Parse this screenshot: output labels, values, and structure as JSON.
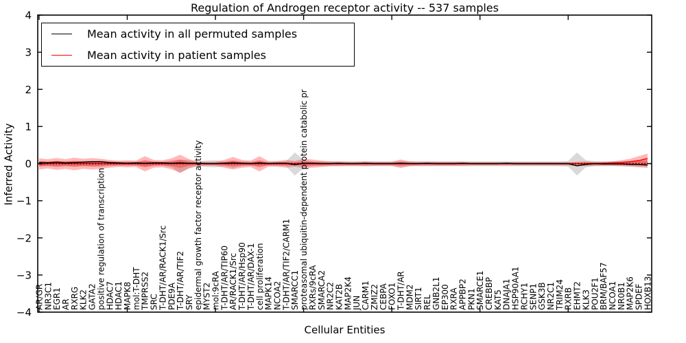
{
  "title": "Regulation of Androgen receptor activity -- 537 samples",
  "axes": {
    "xlabel": "Cellular Entities",
    "ylabel": "Inferred Activity"
  },
  "legend": {
    "items": [
      {
        "label": "Mean activity in all permuted samples",
        "color": "#000000"
      },
      {
        "label": "Mean activity in patient samples",
        "color": "#ff0000"
      }
    ]
  },
  "chart_data": {
    "type": "line",
    "title": "Regulation of Androgen receptor activity -- 537 samples",
    "xlabel": "Cellular Entities",
    "ylabel": "Inferred Activity",
    "ylim": [
      -4,
      4
    ],
    "yticks": [
      -4,
      -3,
      -2,
      -1,
      0,
      1,
      2,
      3,
      4
    ],
    "grid": false,
    "legend_position": "upper left",
    "zero_line": {
      "value": 0,
      "style": "dotted",
      "color": "#000000"
    },
    "categories": [
      "AR/GR",
      "NR3C1",
      "EGR1",
      "AR",
      "RXRG",
      "KLK2",
      "GATA2",
      "positive regulation of transcription",
      "HDAC7",
      "HDAC1",
      "MAPK8",
      "mol:T-DHT",
      "TMPRSS2",
      "SRC",
      "T-DHT/AR/RACK1/Src",
      "PDE9A",
      "T-DHT/AR/TIF2",
      "SRY",
      "epidermal growth factor receptor activity",
      "MYST2",
      "mol:9cRA",
      "T-DHT/AR/TIP60",
      "AR/RACK1/Src",
      "T-DHT/AR/Hsp90",
      "T-DHT/AR/DAX-1",
      "cell proliferation",
      "MAPK14",
      "NCOA2",
      "T-DHT/AR/TIF2/CARM1",
      "SMARCC1",
      "proteasomal ubiquitin-dependent protein catabolic pr",
      "RXRs/9cRA",
      "SMARCA2",
      "NR2C2",
      "KAT2B",
      "MAP2K4",
      "JUN",
      "CARM1",
      "ZMIZ2",
      "CEBPA",
      "FOXO1",
      "T-DHT/AR",
      "MDM2",
      "SIRT1",
      "REL",
      "GNB2L1",
      "EP300",
      "RXRA",
      "APPBP2",
      "PKN1",
      "SMARCE1",
      "CREBBP",
      "KAT5",
      "DNAJA1",
      "HSP90AA1",
      "RCHY1",
      "SENP1",
      "GSK3B",
      "NR2C1",
      "TRIM24",
      "RXRB",
      "EHMT2",
      "KLK3",
      "POU2F1",
      "BRM/BAF57",
      "NCOA1",
      "NR0B1",
      "MAP2K6",
      "SPDEF",
      "HOXB13"
    ],
    "series": [
      {
        "name": "Mean activity in all permuted samples",
        "color": "#000000",
        "values": [
          0.03,
          0.02,
          0.04,
          0.02,
          0.03,
          0.04,
          0.05,
          0.05,
          0.03,
          0.02,
          0.01,
          0.02,
          0.01,
          0.02,
          0.02,
          0.01,
          0.02,
          0.01,
          0.01,
          0.0,
          0.0,
          0.01,
          0.02,
          0.01,
          0.0,
          0.02,
          0.0,
          0.01,
          0.01,
          -0.03,
          0.01,
          0.01,
          0.0,
          0.0,
          0.01,
          0.0,
          0.0,
          0.01,
          0.0,
          0.0,
          0.0,
          0.01,
          0.0,
          0.0,
          0.01,
          0.0,
          0.0,
          0.0,
          0.01,
          0.0,
          0.0,
          0.0,
          0.0,
          0.01,
          0.0,
          0.0,
          0.0,
          0.0,
          0.0,
          0.0,
          0.0,
          -0.06,
          -0.02,
          0.0,
          -0.01,
          -0.01,
          -0.01,
          -0.02,
          -0.02,
          -0.04
        ]
      },
      {
        "name": "Mean activity in patient samples",
        "color": "#ff0000",
        "values": [
          -0.02,
          0.0,
          0.0,
          0.0,
          0.0,
          0.0,
          0.0,
          0.0,
          0.0,
          0.0,
          0.0,
          0.0,
          0.0,
          0.0,
          0.0,
          0.0,
          0.0,
          0.0,
          0.0,
          0.0,
          0.0,
          0.0,
          0.0,
          0.0,
          0.0,
          0.0,
          0.0,
          0.0,
          0.0,
          0.0,
          0.0,
          0.0,
          0.0,
          0.0,
          0.0,
          0.0,
          0.0,
          0.0,
          0.0,
          0.0,
          0.0,
          0.0,
          0.0,
          0.0,
          0.0,
          0.0,
          0.0,
          0.0,
          0.0,
          0.0,
          0.0,
          0.0,
          0.0,
          0.0,
          0.0,
          0.0,
          0.0,
          0.0,
          0.0,
          0.0,
          0.0,
          0.0,
          0.0,
          0.0,
          0.01,
          0.02,
          0.03,
          0.05,
          0.08,
          0.14
        ]
      }
    ],
    "bands": [
      {
        "name": "permuted-spread",
        "color": "#808080",
        "opacity": 0.3,
        "top": [
          0.06,
          0.06,
          0.07,
          0.06,
          0.07,
          0.06,
          0.07,
          0.08,
          0.06,
          0.05,
          0.06,
          0.05,
          0.08,
          0.06,
          0.05,
          0.08,
          0.1,
          0.1,
          0.05,
          0.08,
          0.09,
          0.06,
          0.08,
          0.06,
          0.05,
          0.06,
          0.05,
          0.06,
          0.06,
          0.3,
          0.1,
          0.06,
          0.06,
          0.06,
          0.06,
          0.06,
          0.06,
          0.06,
          0.06,
          0.06,
          0.06,
          0.07,
          0.06,
          0.06,
          0.06,
          0.06,
          0.06,
          0.06,
          0.06,
          0.06,
          0.06,
          0.06,
          0.06,
          0.06,
          0.06,
          0.06,
          0.06,
          0.06,
          0.06,
          0.06,
          0.07,
          0.3,
          0.09,
          0.06,
          0.06,
          0.06,
          0.06,
          0.06,
          0.07,
          0.07
        ],
        "bottom": [
          -0.08,
          -0.07,
          -0.09,
          -0.07,
          -0.08,
          -0.07,
          -0.08,
          -0.09,
          -0.07,
          -0.06,
          -0.06,
          -0.06,
          -0.09,
          -0.07,
          -0.06,
          -0.1,
          -0.25,
          -0.12,
          -0.06,
          -0.09,
          -0.1,
          -0.07,
          -0.12,
          -0.07,
          -0.06,
          -0.07,
          -0.06,
          -0.07,
          -0.07,
          -0.32,
          -0.12,
          -0.07,
          -0.07,
          -0.07,
          -0.07,
          -0.07,
          -0.07,
          -0.07,
          -0.07,
          -0.07,
          -0.07,
          -0.08,
          -0.07,
          -0.07,
          -0.07,
          -0.07,
          -0.07,
          -0.07,
          -0.07,
          -0.07,
          -0.07,
          -0.07,
          -0.07,
          -0.07,
          -0.07,
          -0.07,
          -0.07,
          -0.07,
          -0.07,
          -0.07,
          -0.08,
          -0.32,
          -0.1,
          -0.07,
          -0.07,
          -0.07,
          -0.07,
          -0.07,
          -0.08,
          -0.08
        ]
      },
      {
        "name": "patient-spread",
        "color": "#ff0000",
        "opacity": 0.28,
        "inner_scale": 0.45,
        "inner_opacity": 0.32,
        "top": [
          0.14,
          0.12,
          0.15,
          0.12,
          0.16,
          0.13,
          0.15,
          0.13,
          0.1,
          0.08,
          0.09,
          0.08,
          0.2,
          0.1,
          0.09,
          0.14,
          0.24,
          0.12,
          0.06,
          0.05,
          0.05,
          0.1,
          0.18,
          0.1,
          0.08,
          0.2,
          0.07,
          0.07,
          0.1,
          0.07,
          0.13,
          0.11,
          0.08,
          0.06,
          0.06,
          0.05,
          0.05,
          0.06,
          0.05,
          0.05,
          0.05,
          0.11,
          0.06,
          0.05,
          0.05,
          0.05,
          0.05,
          0.05,
          0.05,
          0.04,
          0.04,
          0.04,
          0.04,
          0.04,
          0.04,
          0.04,
          0.04,
          0.04,
          0.04,
          0.04,
          0.04,
          0.05,
          0.06,
          0.05,
          0.05,
          0.06,
          0.09,
          0.13,
          0.2,
          0.27
        ],
        "bottom": [
          -0.16,
          -0.13,
          -0.17,
          -0.14,
          -0.18,
          -0.14,
          -0.16,
          -0.14,
          -0.11,
          -0.09,
          -0.1,
          -0.09,
          -0.21,
          -0.11,
          -0.1,
          -0.15,
          -0.25,
          -0.13,
          -0.07,
          -0.06,
          -0.06,
          -0.11,
          -0.16,
          -0.11,
          -0.09,
          -0.21,
          -0.08,
          -0.08,
          -0.11,
          -0.08,
          -0.12,
          -0.11,
          -0.09,
          -0.07,
          -0.07,
          -0.06,
          -0.06,
          -0.07,
          -0.06,
          -0.06,
          -0.06,
          -0.12,
          -0.07,
          -0.06,
          -0.06,
          -0.06,
          -0.06,
          -0.06,
          -0.06,
          -0.05,
          -0.05,
          -0.05,
          -0.05,
          -0.05,
          -0.05,
          -0.05,
          -0.05,
          -0.05,
          -0.05,
          -0.05,
          -0.05,
          -0.06,
          -0.07,
          -0.06,
          -0.06,
          -0.06,
          -0.07,
          -0.08,
          -0.1,
          -0.12
        ]
      }
    ]
  }
}
